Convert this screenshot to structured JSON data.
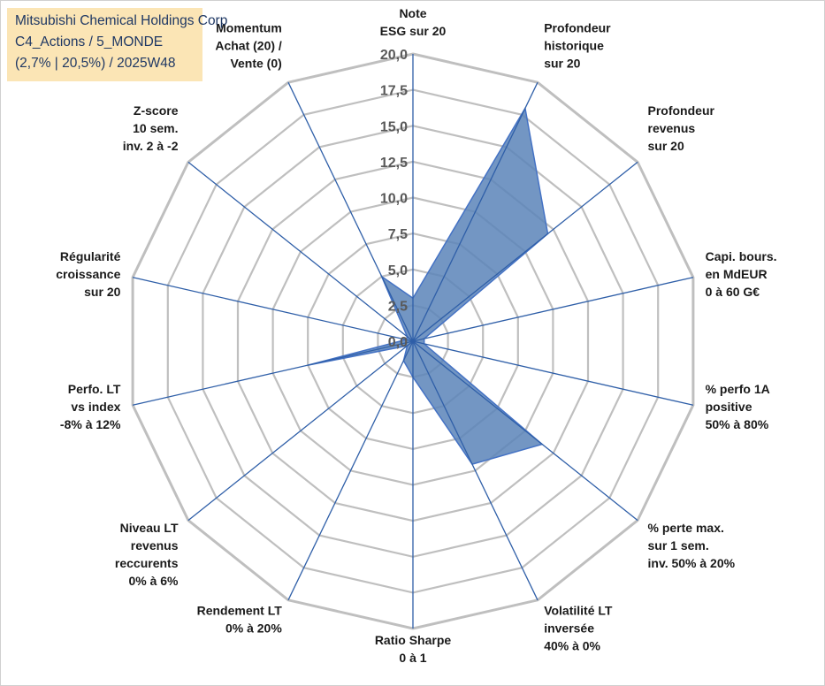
{
  "info": {
    "line1": "Mitsubishi Chemical Holdings Corp",
    "line2": "C4_Actions / 5_MONDE",
    "line3": "(2,7% | 20,5%) / 2025W48"
  },
  "chart_data": {
    "type": "radar",
    "rmin": 0,
    "rmax": 20,
    "rstep": 2.5,
    "tick_labels": [
      "0,0",
      "2,5",
      "5,0",
      "7,5",
      "10,0",
      "12,5",
      "15,0",
      "17,5",
      "20,0"
    ],
    "categories": [
      [
        "Note",
        "ESG sur 20"
      ],
      [
        "Profondeur",
        "historique",
        "sur 20"
      ],
      [
        "Profondeur",
        "revenus",
        "sur 20"
      ],
      [
        "Capi. bours.",
        "en MdEUR",
        "0 à 60 G€"
      ],
      [
        "% perfo 1A",
        "positive",
        "50% à 80%"
      ],
      [
        "% perte max.",
        "sur 1 sem.",
        "inv. 50% à 20%"
      ],
      [
        "Volatilité LT",
        "inversée",
        "40% à 0%"
      ],
      [
        "Ratio Sharpe",
        "0 à 1"
      ],
      [
        "Rendement LT",
        "0% à 20%"
      ],
      [
        "Niveau LT",
        "revenus",
        "reccurents",
        "0% à 6%"
      ],
      [
        "Perfo. LT",
        "vs index",
        "-8% à 12%"
      ],
      [
        "Régularité",
        "croissance",
        "sur 20"
      ],
      [
        "Z-score",
        "10 sem.",
        "inv. 2 à -2"
      ],
      [
        "Momentum",
        "Achat (20) /",
        "Vente (0)"
      ]
    ],
    "values": [
      3.0,
      18.0,
      12.0,
      0.8,
      0.8,
      11.5,
      9.5,
      2.5,
      1.5,
      0.5,
      7.5,
      0.5,
      0.5,
      5.0
    ],
    "fill_color": "#5b84b8",
    "line_color": "#4472c4",
    "grid_color": "#bfbfbf",
    "spoke_color": "#2f5fa8"
  }
}
